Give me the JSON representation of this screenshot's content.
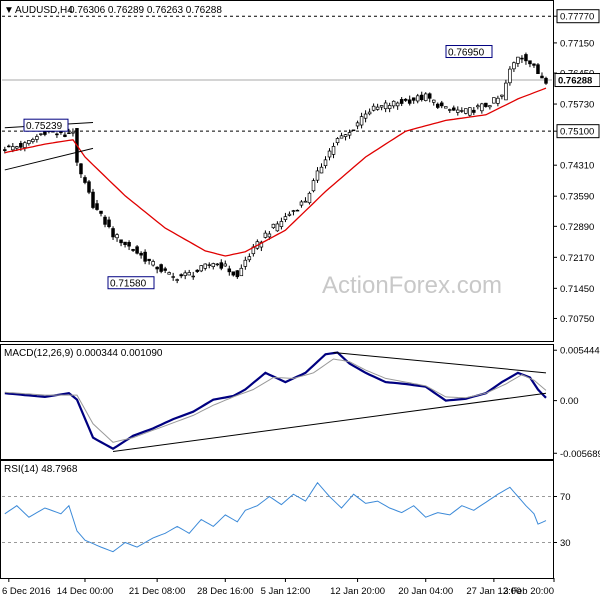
{
  "chart_data": [
    {
      "type": "candlestick",
      "title": "AUDUSD,H4",
      "title_values": "0.76306 0.76289 0.76263 0.76288",
      "ylim": [
        0.7025,
        0.781
      ],
      "y_ticks": [
        "0.77770",
        "0.77150",
        "0.76450",
        "0.75730",
        "0.75100",
        "0.74310",
        "0.73590",
        "0.72890",
        "0.72170",
        "0.71450",
        "0.70750"
      ],
      "y_tick_values": [
        0.7777,
        0.7715,
        0.7645,
        0.7573,
        0.751,
        0.7431,
        0.7359,
        0.7289,
        0.7217,
        0.7145,
        0.7075
      ],
      "current_price": {
        "label": "0.76288",
        "value": 0.76288
      },
      "hlines": [
        {
          "label": "0.77770",
          "value": 0.7777,
          "style": "dashed"
        },
        {
          "label": "0.75100",
          "value": 0.751,
          "style": "dashed"
        }
      ],
      "annotations": [
        {
          "label": "0.75239",
          "value": 0.75239
        },
        {
          "label": "0.71580",
          "value": 0.7158
        },
        {
          "label": "0.76950",
          "value": 0.7695
        }
      ],
      "close_path": [
        [
          0,
          0.747
        ],
        [
          5,
          0.7478
        ],
        [
          10,
          0.751
        ],
        [
          15,
          0.75
        ],
        [
          17,
          0.7512
        ],
        [
          18,
          0.743
        ],
        [
          22,
          0.734
        ],
        [
          27,
          0.727
        ],
        [
          32,
          0.7235
        ],
        [
          37,
          0.72
        ],
        [
          42,
          0.717
        ],
        [
          47,
          0.718
        ],
        [
          52,
          0.7205
        ],
        [
          55,
          0.7195
        ],
        [
          58,
          0.717
        ],
        [
          60,
          0.721
        ],
        [
          65,
          0.727
        ],
        [
          70,
          0.731
        ],
        [
          75,
          0.735
        ],
        [
          80,
          0.745
        ],
        [
          83,
          0.749
        ],
        [
          86,
          0.7505
        ],
        [
          90,
          0.7555
        ],
        [
          95,
          0.757
        ],
        [
          100,
          0.758
        ],
        [
          105,
          0.759
        ],
        [
          110,
          0.756
        ],
        [
          115,
          0.7555
        ],
        [
          120,
          0.757
        ],
        [
          124,
          0.759
        ],
        [
          126,
          0.765
        ],
        [
          128,
          0.7685
        ],
        [
          130,
          0.768
        ],
        [
          133,
          0.7645
        ],
        [
          135,
          0.7629
        ]
      ],
      "ma_path": [
        [
          0,
          0.746
        ],
        [
          10,
          0.748
        ],
        [
          17,
          0.749
        ],
        [
          20,
          0.745
        ],
        [
          30,
          0.736
        ],
        [
          40,
          0.7285
        ],
        [
          50,
          0.7232
        ],
        [
          55,
          0.722
        ],
        [
          60,
          0.723
        ],
        [
          70,
          0.728
        ],
        [
          80,
          0.737
        ],
        [
          90,
          0.745
        ],
        [
          100,
          0.751
        ],
        [
          110,
          0.7535
        ],
        [
          120,
          0.7548
        ],
        [
          128,
          0.7585
        ],
        [
          135,
          0.761
        ]
      ],
      "moving_average_color": "#e00000",
      "trendlines": [
        {
          "points": [
            [
              0,
              0.7518
            ],
            [
              22,
              0.753
            ]
          ]
        },
        {
          "points": [
            [
              0,
              0.742
            ],
            [
              22,
              0.747
            ]
          ]
        }
      ]
    },
    {
      "type": "line",
      "title": "MACD(12,26,9) 0.000344 0.001090",
      "ylim": [
        -0.0062,
        0.0059
      ],
      "y_ticks": [
        "0.005444",
        "0.00",
        "-0.005689"
      ],
      "y_tick_values": [
        0.005444,
        0.0,
        -0.005689
      ],
      "series": [
        {
          "path": [
            [
              0,
              0.0008
            ],
            [
              10,
              0.0004
            ],
            [
              16,
              0.0008
            ],
            [
              18,
              0.0001
            ],
            [
              22,
              -0.004
            ],
            [
              27,
              -0.0052
            ],
            [
              32,
              -0.0038
            ],
            [
              37,
              -0.003
            ],
            [
              42,
              -0.002
            ],
            [
              47,
              -0.0012
            ],
            [
              52,
              0.0001
            ],
            [
              57,
              0.0005
            ],
            [
              60,
              0.0012
            ],
            [
              65,
              0.003
            ],
            [
              70,
              0.002
            ],
            [
              75,
              0.003
            ],
            [
              80,
              0.005
            ],
            [
              83,
              0.0052
            ],
            [
              86,
              0.004
            ],
            [
              90,
              0.003
            ],
            [
              95,
              0.002
            ],
            [
              100,
              0.0018
            ],
            [
              105,
              0.0015
            ],
            [
              110,
              0.0
            ],
            [
              115,
              0.0002
            ],
            [
              120,
              0.0008
            ],
            [
              124,
              0.002
            ],
            [
              128,
              0.003
            ],
            [
              131,
              0.0025
            ],
            [
              133,
              0.0012
            ],
            [
              135,
              0.0003
            ]
          ],
          "color": "#000080",
          "width": 2.2
        },
        {
          "path": [
            [
              0,
              0.0009
            ],
            [
              10,
              0.0006
            ],
            [
              18,
              0.0006
            ],
            [
              22,
              -0.0025
            ],
            [
              27,
              -0.0045
            ],
            [
              32,
              -0.004
            ],
            [
              37,
              -0.0032
            ],
            [
              42,
              -0.0024
            ],
            [
              47,
              -0.0016
            ],
            [
              52,
              -0.0005
            ],
            [
              57,
              0.0004
            ],
            [
              62,
              0.0012
            ],
            [
              67,
              0.0025
            ],
            [
              72,
              0.0024
            ],
            [
              77,
              0.003
            ],
            [
              82,
              0.0045
            ],
            [
              86,
              0.0042
            ],
            [
              90,
              0.0033
            ],
            [
              95,
              0.0024
            ],
            [
              100,
              0.002
            ],
            [
              105,
              0.0016
            ],
            [
              110,
              0.0004
            ],
            [
              115,
              0.0003
            ],
            [
              120,
              0.0008
            ],
            [
              125,
              0.0018
            ],
            [
              129,
              0.0028
            ],
            [
              132,
              0.0022
            ],
            [
              135,
              0.0011
            ]
          ],
          "color": "#999999",
          "width": 1
        }
      ],
      "trendlines": [
        {
          "points": [
            [
              27,
              -0.0055
            ],
            [
              135,
              0.0008
            ]
          ]
        },
        {
          "points": [
            [
              82,
              0.0052
            ],
            [
              135,
              0.003
            ]
          ]
        }
      ]
    },
    {
      "type": "line",
      "title": "RSI(14) 48.7968",
      "ylim": [
        0,
        100
      ],
      "y_ticks": [
        "70",
        "30"
      ],
      "y_tick_values": [
        70,
        30
      ],
      "levels": [
        70,
        30
      ],
      "series": [
        {
          "path": [
            [
              0,
              55
            ],
            [
              3,
              62
            ],
            [
              6,
              52
            ],
            [
              10,
              60
            ],
            [
              14,
              55
            ],
            [
              16,
              62
            ],
            [
              18,
              40
            ],
            [
              20,
              32
            ],
            [
              24,
              26
            ],
            [
              27,
              22
            ],
            [
              30,
              30
            ],
            [
              33,
              26
            ],
            [
              37,
              34
            ],
            [
              40,
              38
            ],
            [
              43,
              44
            ],
            [
              46,
              38
            ],
            [
              49,
              50
            ],
            [
              52,
              44
            ],
            [
              55,
              54
            ],
            [
              58,
              48
            ],
            [
              60,
              58
            ],
            [
              63,
              62
            ],
            [
              66,
              70
            ],
            [
              69,
              63
            ],
            [
              72,
              72
            ],
            [
              75,
              66
            ],
            [
              78,
              82
            ],
            [
              81,
              70
            ],
            [
              84,
              60
            ],
            [
              87,
              72
            ],
            [
              90,
              64
            ],
            [
              93,
              66
            ],
            [
              96,
              60
            ],
            [
              99,
              56
            ],
            [
              102,
              62
            ],
            [
              105,
              52
            ],
            [
              108,
              56
            ],
            [
              111,
              54
            ],
            [
              114,
              62
            ],
            [
              117,
              58
            ],
            [
              120,
              65
            ],
            [
              123,
              72
            ],
            [
              126,
              78
            ],
            [
              128,
              70
            ],
            [
              130,
              62
            ],
            [
              132,
              55
            ],
            [
              133,
              46
            ],
            [
              135,
              49
            ]
          ],
          "color": "#3c8ad8",
          "width": 1
        }
      ]
    }
  ],
  "x_axis": {
    "bar_count": 136,
    "labels": [
      "6 Dec 2016",
      "14 Dec 00:00",
      "21 Dec 08:00",
      "28 Dec 16:00",
      "5 Jan 12:00",
      "12 Jan 20:00",
      "20 Jan 04:00",
      "27 Jan 12:00",
      "3 Feb 20:00"
    ],
    "label_bars": [
      1,
      20,
      38,
      55,
      70,
      88,
      105,
      122,
      137
    ]
  },
  "watermark": "ActionForex.com",
  "colors": {
    "up_candle": "#ffffff",
    "down_candle": "#000000",
    "candle_outline": "#000000",
    "grid_dashed": "#000000",
    "current_price_line": "#aaaaaa",
    "watermark": "#c8c8c8",
    "rsi_level": "#9a9a9a"
  }
}
